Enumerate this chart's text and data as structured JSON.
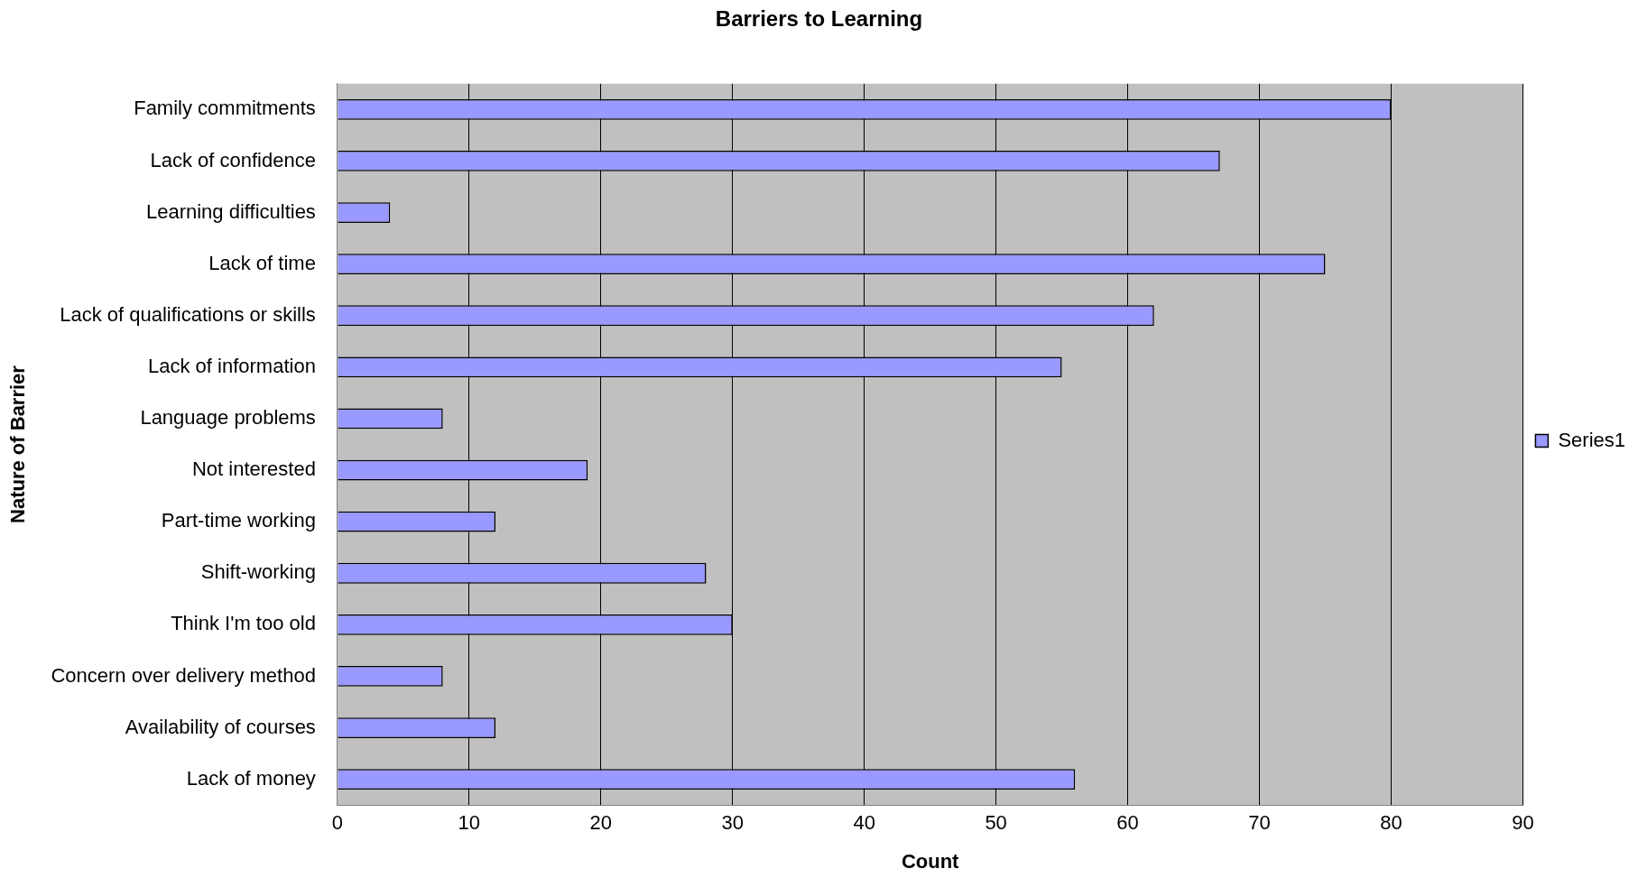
{
  "chart_data": {
    "type": "bar",
    "orientation": "horizontal",
    "title": "Barriers to Learning",
    "xlabel": "Count",
    "ylabel": "Nature of Barrier",
    "categories": [
      "Family commitments",
      "Lack of confidence",
      "Learning difficulties",
      "Lack of time",
      "Lack of qualifications or skills",
      "Lack of information",
      "Language problems",
      "Not interested",
      "Part-time working",
      "Shift-working",
      "Think I'm too old",
      "Concern over delivery method",
      "Availability of courses",
      "Lack of money"
    ],
    "series": [
      {
        "name": "Series1",
        "color": "#9999ff",
        "values": [
          80,
          67,
          4,
          75,
          62,
          55,
          8,
          19,
          12,
          28,
          30,
          8,
          12,
          56
        ]
      }
    ],
    "xlim": [
      0,
      90
    ],
    "xticks": [
      0,
      10,
      20,
      30,
      40,
      50,
      60,
      70,
      80,
      90
    ],
    "grid": "x",
    "legend": "right"
  }
}
